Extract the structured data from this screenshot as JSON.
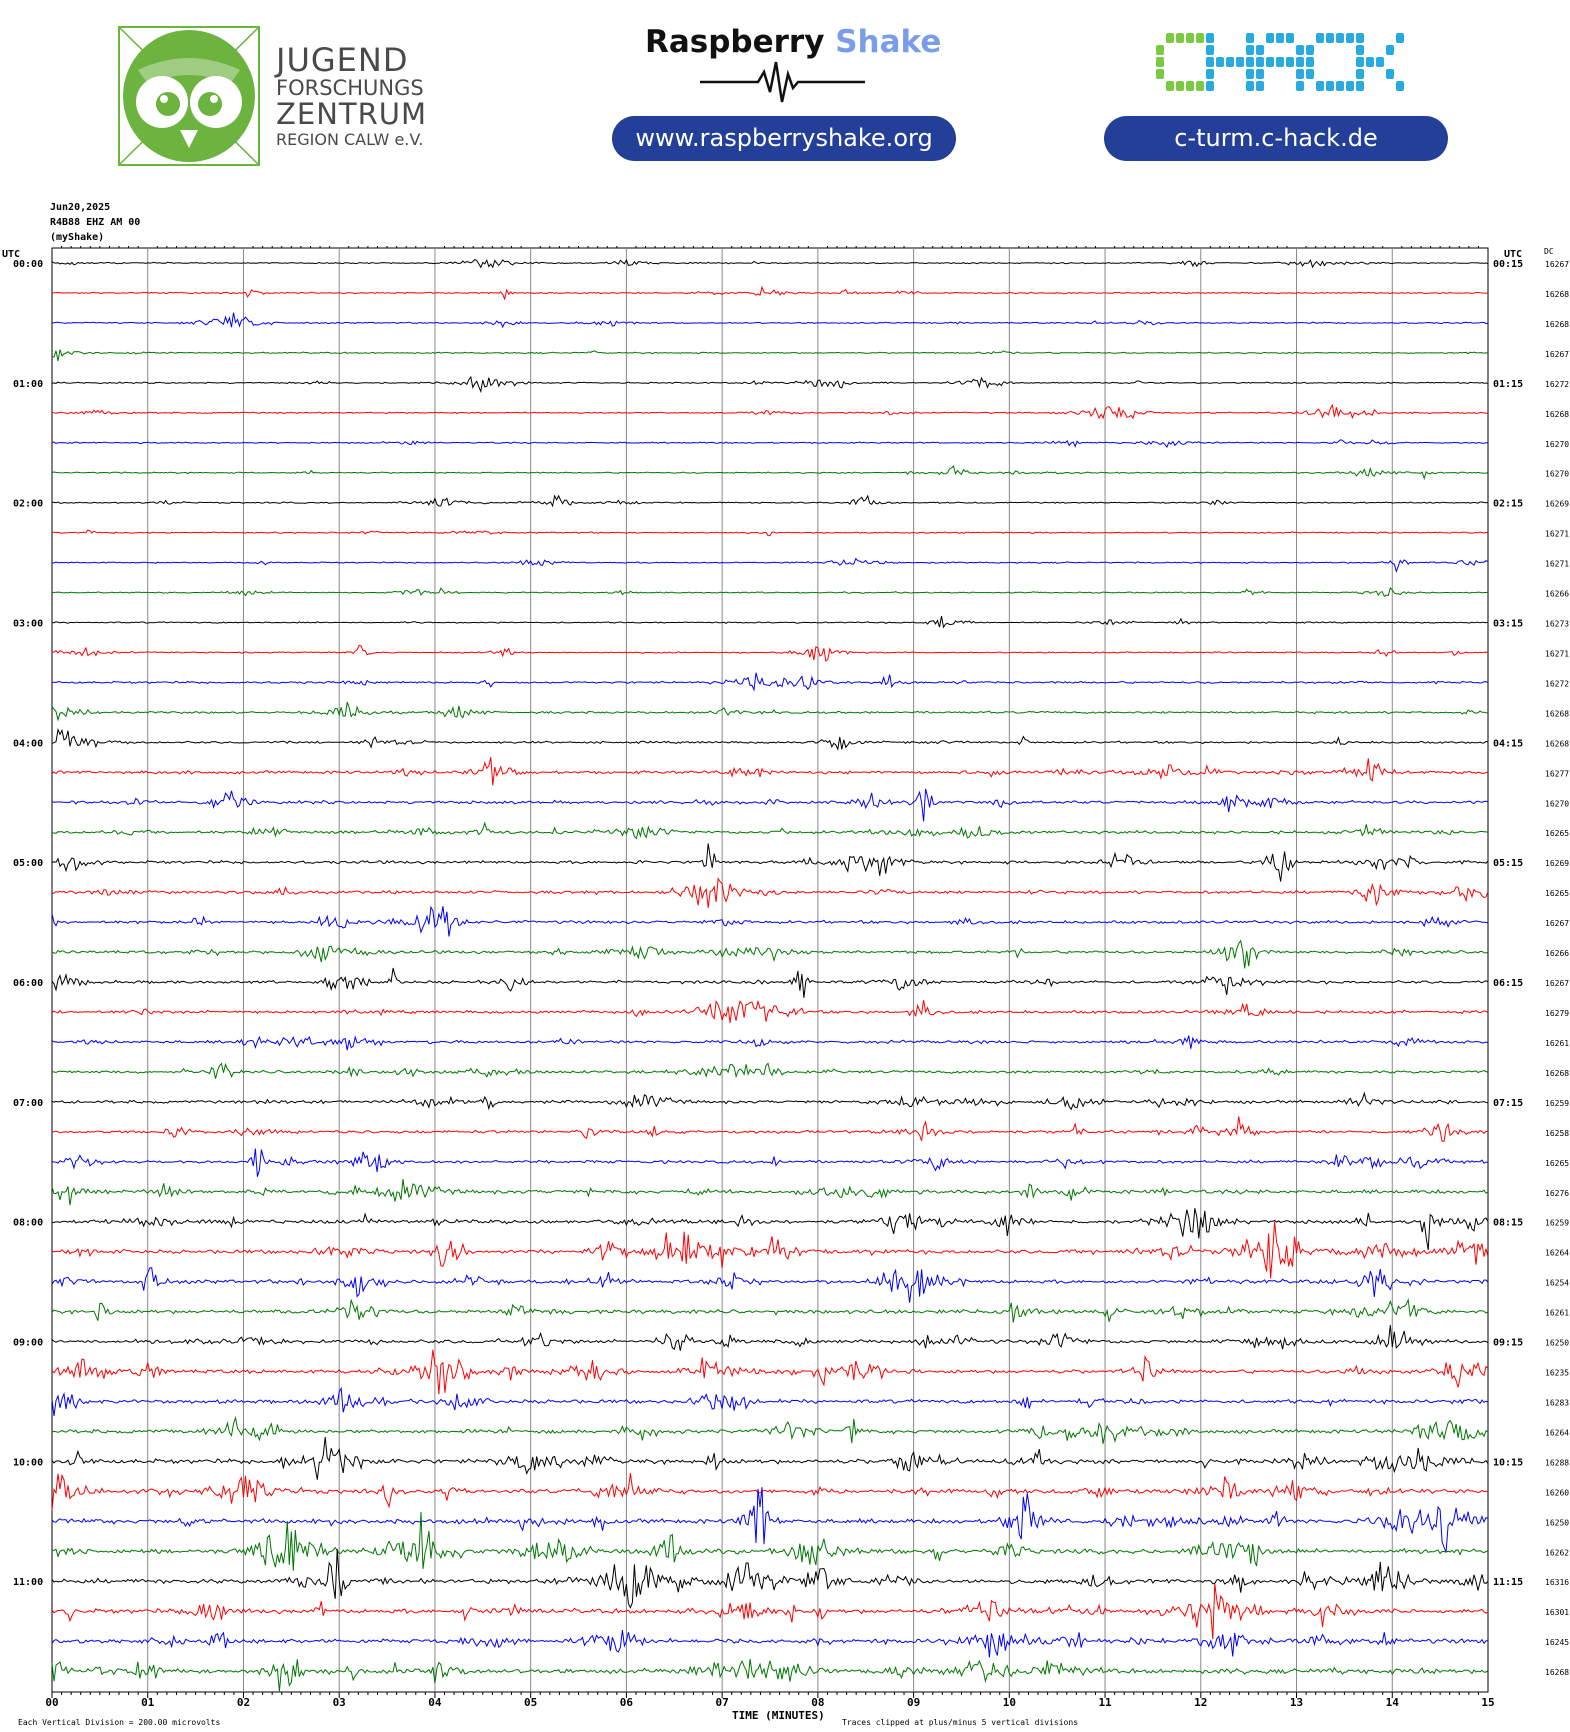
{
  "header": {
    "jfz": {
      "line1": "JUGEND",
      "line2": "FORSCHUNGS",
      "line3": "ZENTRUM",
      "line4": "REGION CALW e.V."
    },
    "raspberry": {
      "word1": "Raspberry",
      "word2": "Shake",
      "url": "www.raspberryshake.org"
    },
    "chack": {
      "logo": "CHACK",
      "url": "c-turm.c-hack.de"
    }
  },
  "colors": {
    "brand_green": "#6cb33f",
    "pill_blue": "#233f97",
    "shake_blue": "#7b9de8",
    "chack_green": "#7ac943",
    "chack_blue": "#29abe2"
  },
  "chart_data": {
    "type": "line",
    "date": "Jun20,2025",
    "station": "R4B88 EHZ AM 00",
    "source": "(myShake)",
    "left_axis_title": "UTC",
    "right_axis_title": "UTC",
    "dc_title": "DC",
    "xlabel": "TIME (MINUTES)",
    "xlim": [
      0,
      15
    ],
    "x_ticks": [
      "00",
      "01",
      "02",
      "03",
      "04",
      "05",
      "06",
      "07",
      "08",
      "09",
      "10",
      "11",
      "12",
      "13",
      "14",
      "15"
    ],
    "series_colors": [
      "#000000",
      "#ff0000",
      "#0000ff",
      "#007700"
    ],
    "left_hour_labels": [
      "00:00",
      "01:00",
      "02:00",
      "03:00",
      "04:00",
      "05:00",
      "06:00",
      "07:00",
      "08:00",
      "09:00",
      "10:00",
      "11:00"
    ],
    "right_hour_labels": [
      "00:15",
      "01:15",
      "02:15",
      "03:15",
      "04:15",
      "05:15",
      "06:15",
      "07:15",
      "08:15",
      "09:15",
      "10:15",
      "11:15"
    ],
    "dc_values": [
      "16267",
      "16268",
      "16268",
      "16267",
      "16272",
      "16268",
      "16270",
      "16270",
      "16269",
      "16271",
      "16271",
      "16266",
      "16273",
      "16271",
      "16272",
      "16268",
      "16268",
      "16277",
      "16270",
      "16265",
      "16269",
      "16265",
      "16267",
      "16266",
      "16267",
      "16279",
      "16261",
      "16268",
      "16259",
      "16258",
      "16265",
      "16276",
      "16259",
      "16264",
      "16254",
      "16261",
      "16250",
      "16235",
      "16283",
      "16264",
      "16288",
      "16260",
      "16250",
      "16262",
      "16316",
      "16301",
      "16245",
      "16268"
    ],
    "activity": [
      1,
      1,
      1,
      1,
      1,
      1,
      1,
      1,
      1,
      1,
      1,
      1,
      1,
      1,
      2,
      2,
      2,
      3,
      3,
      3,
      3,
      3,
      3,
      3,
      3,
      3,
      3,
      3,
      3,
      3,
      3,
      4,
      4,
      4,
      4,
      4,
      4,
      4,
      4,
      4,
      5,
      5,
      5,
      5,
      5,
      5,
      5,
      5
    ],
    "scale_note": "Each Vertical Division = 200.00 microvolts",
    "clip_note": "Traces clipped at plus/minus 5 vertical divisions"
  }
}
